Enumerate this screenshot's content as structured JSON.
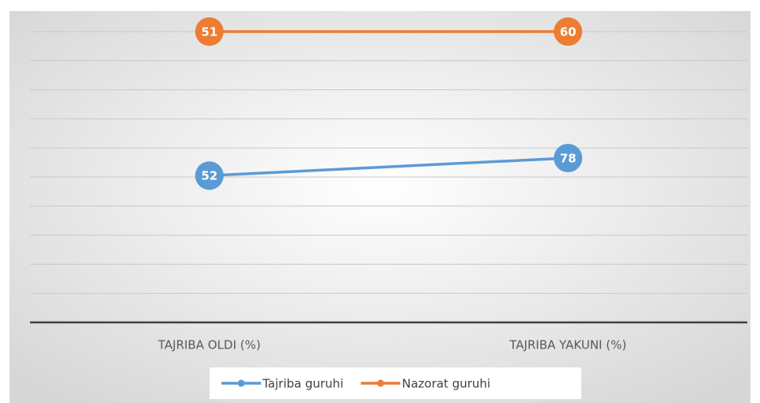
{
  "chart_data": {
    "type": "line",
    "stacking": "percent",
    "categories": [
      "TAJRIBA OLDI (%)",
      "TAJRIBA YAKUNI (%)"
    ],
    "series": [
      {
        "name": "Tajriba guruhi",
        "color": "#5b9bd5",
        "values": [
          52,
          78
        ]
      },
      {
        "name": "Nazorat guruhi",
        "color": "#ed7d31",
        "values": [
          51,
          60
        ]
      }
    ],
    "ylim": [
      0,
      100
    ],
    "yticks": [
      0,
      10,
      20,
      30,
      40,
      50,
      60,
      70,
      80,
      90,
      100
    ],
    "show_ytick_labels": false,
    "grid": true,
    "legend": "bottom"
  }
}
